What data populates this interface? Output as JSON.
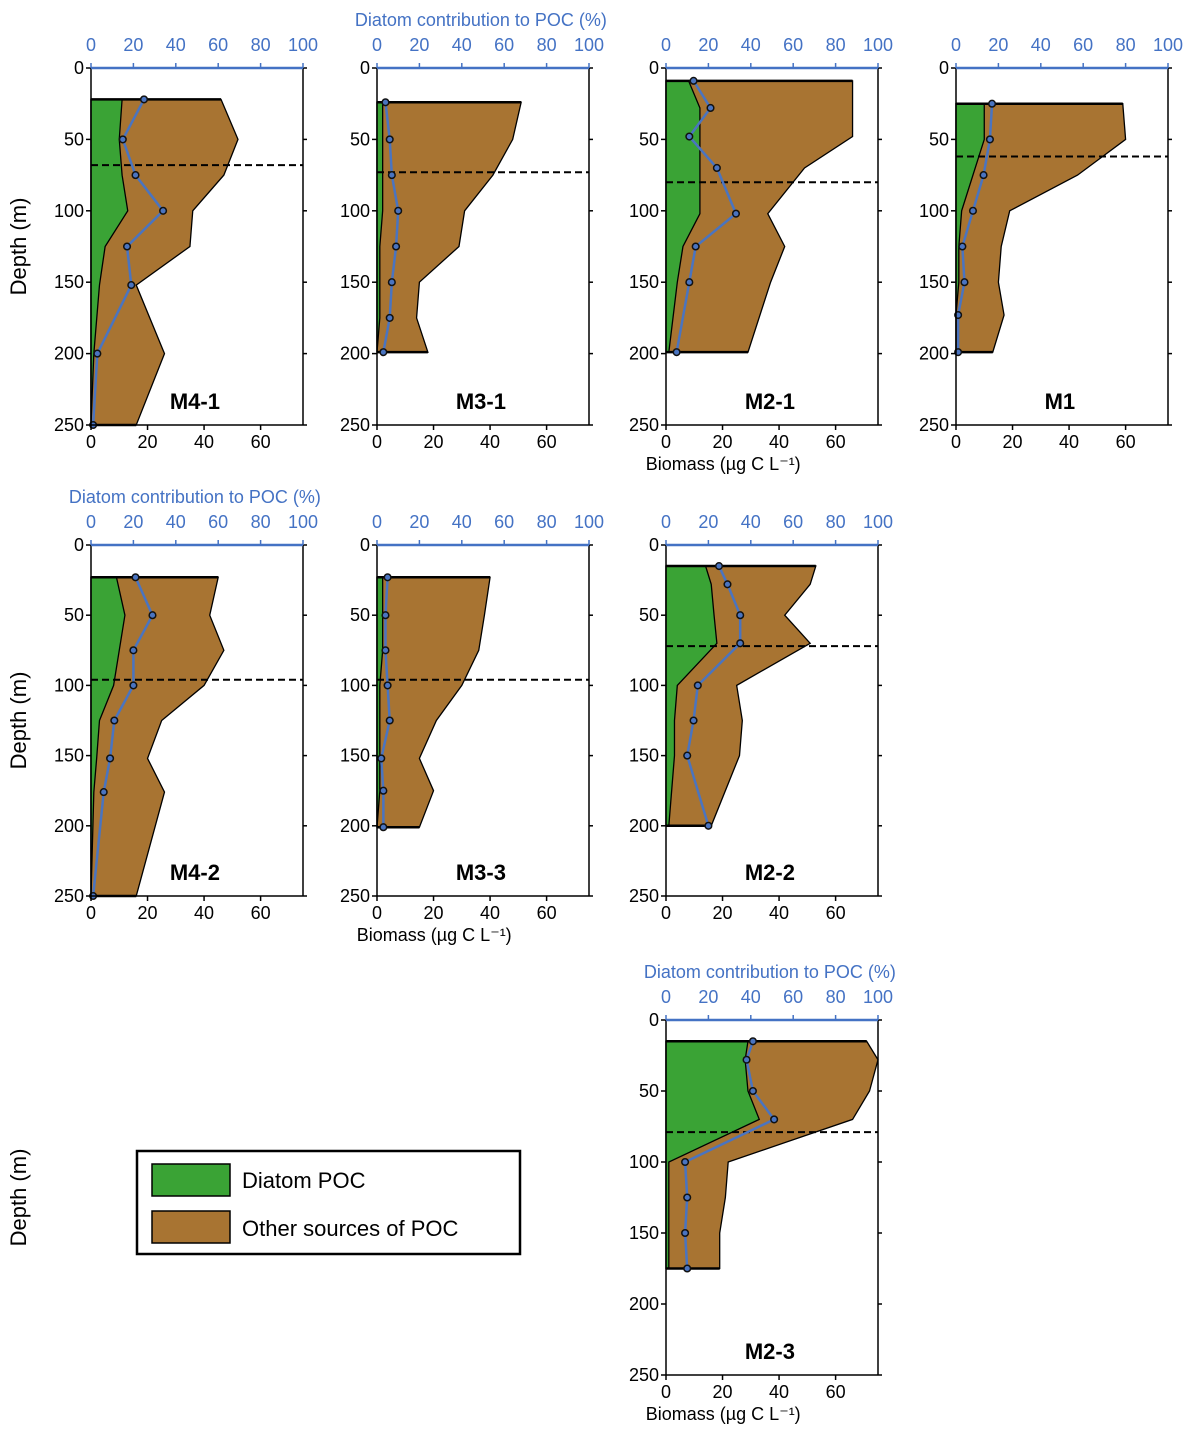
{
  "colors": {
    "diatom": "#3aa335",
    "other": "#a87432",
    "pct_line": "#4a74c0",
    "top_axis": "#4472c4",
    "mld": "#000000"
  },
  "legend": {
    "placement": "bottom-left",
    "items": [
      {
        "label": "Diatom POC",
        "color": "#3aa335"
      },
      {
        "label": "Other sources of POC",
        "color": "#a87432"
      }
    ]
  },
  "axes": {
    "bottom_label": "Biomass (µg C L⁻¹)",
    "top_label": "Diatom contribution to POC (%)",
    "y_label": "Depth (m)",
    "bottom_ticks": [
      0,
      20,
      40,
      60
    ],
    "top_ticks": [
      0,
      20,
      40,
      60,
      80,
      100
    ],
    "y_ticks": [
      0,
      50,
      100,
      150,
      200,
      250
    ]
  },
  "chart_data": [
    {
      "type": "area",
      "title": "M4-1",
      "xlim": [
        0,
        75
      ],
      "ylim": [
        250,
        0
      ],
      "pct_lim": [
        0,
        100
      ],
      "show_y_label": true,
      "show_bottom_label": false,
      "show_top_label": false,
      "mld": 68,
      "depth": [
        22,
        50,
        75,
        100,
        125,
        152,
        200,
        250
      ],
      "diatom": [
        11,
        10,
        11,
        13,
        5,
        3,
        1,
        0
      ],
      "total": [
        46,
        52,
        47,
        36,
        35,
        16,
        26,
        16
      ],
      "pct_depth": [
        22,
        50,
        75,
        100,
        125,
        152,
        200,
        250
      ],
      "pct": [
        25,
        15,
        21,
        34,
        17,
        19,
        3,
        1
      ]
    },
    {
      "type": "area",
      "title": "M3-1",
      "xlim": [
        0,
        75
      ],
      "ylim": [
        250,
        0
      ],
      "pct_lim": [
        0,
        100
      ],
      "show_y_label": false,
      "show_bottom_label": false,
      "show_top_label": true,
      "mld": 73,
      "depth": [
        24,
        50,
        75,
        100,
        125,
        150,
        175,
        199
      ],
      "diatom": [
        2,
        2,
        2,
        2,
        1,
        1,
        1,
        0
      ],
      "total": [
        51,
        48,
        41,
        31,
        29,
        15,
        14,
        18
      ],
      "pct_depth": [
        24,
        50,
        75,
        100,
        125,
        150,
        175,
        199
      ],
      "pct": [
        4,
        6,
        7,
        10,
        9,
        7,
        6,
        3
      ]
    },
    {
      "type": "area",
      "title": "M2-1",
      "xlim": [
        0,
        75
      ],
      "ylim": [
        250,
        0
      ],
      "pct_lim": [
        0,
        100
      ],
      "show_y_label": false,
      "show_bottom_label": true,
      "show_top_label": false,
      "mld": 80,
      "depth": [
        9,
        28,
        48,
        70,
        102,
        125,
        150,
        199
      ],
      "diatom": [
        8,
        12,
        12,
        12,
        12,
        6,
        4,
        1
      ],
      "total": [
        66,
        66,
        66,
        49,
        36,
        42,
        37,
        29
      ],
      "pct_depth": [
        9,
        28,
        48,
        70,
        102,
        125,
        150,
        199
      ],
      "pct": [
        13,
        21,
        11,
        24,
        33,
        14,
        11,
        5
      ]
    },
    {
      "type": "area",
      "title": "M1",
      "xlim": [
        0,
        75
      ],
      "ylim": [
        250,
        0
      ],
      "pct_lim": [
        0,
        100
      ],
      "show_y_label": false,
      "show_bottom_label": false,
      "show_top_label": false,
      "mld": 62,
      "depth": [
        25,
        50,
        75,
        100,
        125,
        150,
        173,
        199
      ],
      "diatom": [
        10,
        10,
        6,
        2,
        1,
        1,
        0,
        0
      ],
      "total": [
        59,
        60,
        43,
        19,
        16,
        15,
        17,
        13
      ],
      "pct_depth": [
        25,
        50,
        75,
        100,
        125,
        150,
        173,
        199
      ],
      "pct": [
        17,
        16,
        13,
        8,
        3,
        4,
        1,
        1
      ]
    },
    {
      "type": "area",
      "title": "M4-2",
      "xlim": [
        0,
        75
      ],
      "ylim": [
        250,
        0
      ],
      "pct_lim": [
        0,
        100
      ],
      "show_y_label": true,
      "show_bottom_label": false,
      "show_top_label": true,
      "mld": 96,
      "depth": [
        23,
        50,
        75,
        100,
        125,
        152,
        176,
        250
      ],
      "diatom": [
        9,
        12,
        10,
        8,
        3,
        2,
        1,
        0
      ],
      "total": [
        45,
        42,
        47,
        40,
        25,
        20,
        26,
        16
      ],
      "pct_depth": [
        23,
        50,
        75,
        100,
        125,
        152,
        176,
        250
      ],
      "pct": [
        21,
        29,
        20,
        20,
        11,
        9,
        6,
        1
      ]
    },
    {
      "type": "area",
      "title": "M3-3",
      "xlim": [
        0,
        75
      ],
      "ylim": [
        250,
        0
      ],
      "pct_lim": [
        0,
        100
      ],
      "show_y_label": false,
      "show_bottom_label": true,
      "show_top_label": false,
      "mld": 96,
      "depth": [
        23,
        50,
        75,
        100,
        125,
        152,
        175,
        201
      ],
      "diatom": [
        2,
        2,
        2,
        1,
        1,
        1,
        1,
        0
      ],
      "total": [
        40,
        38,
        36,
        30,
        21,
        15,
        20,
        15
      ],
      "pct_depth": [
        23,
        50,
        75,
        100,
        125,
        152,
        175,
        201
      ],
      "pct": [
        5,
        4,
        4,
        5,
        6,
        2,
        3,
        3
      ]
    },
    {
      "type": "area",
      "title": "M2-2",
      "xlim": [
        0,
        75
      ],
      "ylim": [
        250,
        0
      ],
      "pct_lim": [
        0,
        100
      ],
      "show_y_label": false,
      "show_bottom_label": false,
      "show_top_label": false,
      "mld": 72,
      "depth": [
        15,
        28,
        50,
        70,
        100,
        125,
        150,
        200
      ],
      "diatom": [
        14,
        16,
        17,
        18,
        4,
        3,
        3,
        1
      ],
      "total": [
        53,
        51,
        42,
        51,
        25,
        27,
        26,
        16
      ],
      "pct_depth": [
        15,
        28,
        50,
        70,
        100,
        125,
        150,
        200
      ],
      "pct": [
        25,
        29,
        35,
        35,
        15,
        13,
        10,
        20
      ]
    },
    {
      "type": "area",
      "title": "M2-3",
      "xlim": [
        0,
        75
      ],
      "ylim": [
        250,
        0
      ],
      "pct_lim": [
        0,
        100
      ],
      "show_y_label": true,
      "show_bottom_label": true,
      "show_top_label": true,
      "mld": 79,
      "depth": [
        15,
        28,
        50,
        70,
        100,
        125,
        150,
        175
      ],
      "diatom": [
        29,
        28,
        29,
        33,
        1,
        1,
        1,
        1
      ],
      "total": [
        71,
        75,
        72,
        66,
        22,
        21,
        19,
        19
      ],
      "pct_depth": [
        15,
        28,
        50,
        70,
        100,
        125,
        150,
        175
      ],
      "pct": [
        41,
        38,
        41,
        51,
        9,
        10,
        9,
        10
      ]
    }
  ]
}
